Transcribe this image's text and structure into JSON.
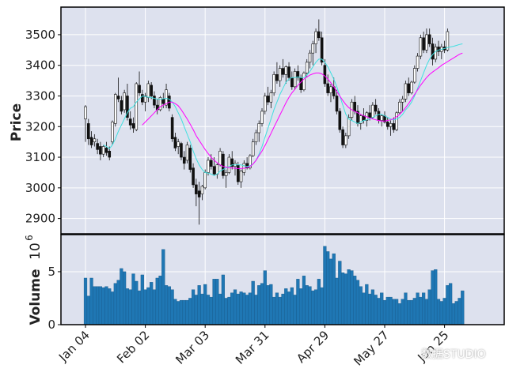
{
  "chart_data": {
    "type": "candlestick",
    "style": {
      "panel_bg": "#dde1ee",
      "grid": "#ffffff",
      "up_color": "#ffffff",
      "down_color": "#111111",
      "ma_short_color": "#40e0e0",
      "ma_long_color": "#ff00ff",
      "volume_color": "#1f77b4"
    },
    "price_panel": {
      "ylabel": "Price",
      "yticks": [
        2900,
        3000,
        3100,
        3200,
        3300,
        3400,
        3500
      ],
      "ylim": [
        2850,
        3590
      ]
    },
    "volume_panel": {
      "ylabel": "Volume",
      "scale_label": "10",
      "scale_exponent": "6",
      "yticks": [
        0,
        5
      ],
      "ylim": [
        0,
        8.5
      ]
    },
    "xticks": [
      {
        "label": "Jan 04",
        "index": 0
      },
      {
        "label": "Feb 02",
        "index": 20
      },
      {
        "label": "Mar 03",
        "index": 40
      },
      {
        "label": "Mar 31",
        "index": 60
      },
      {
        "label": "Apr 29",
        "index": 80
      },
      {
        "label": "May 27",
        "index": 100
      },
      {
        "label": "Jun 25",
        "index": 120
      }
    ],
    "ohlc": [
      [
        3225,
        3270,
        3150,
        3265
      ],
      [
        3210,
        3225,
        3140,
        3160
      ],
      [
        3165,
        3185,
        3130,
        3140
      ],
      [
        3150,
        3175,
        3135,
        3160
      ],
      [
        3145,
        3160,
        3110,
        3125
      ],
      [
        3135,
        3150,
        3090,
        3110
      ],
      [
        3110,
        3140,
        3100,
        3135
      ],
      [
        3130,
        3150,
        3105,
        3115
      ],
      [
        3120,
        3135,
        3090,
        3100
      ],
      [
        3150,
        3220,
        3140,
        3215
      ],
      [
        3210,
        3310,
        3200,
        3305
      ],
      [
        3300,
        3360,
        3280,
        3290
      ],
      [
        3285,
        3300,
        3240,
        3250
      ],
      [
        3255,
        3320,
        3245,
        3310
      ],
      [
        3300,
        3340,
        3220,
        3230
      ],
      [
        3225,
        3250,
        3190,
        3205
      ],
      [
        3210,
        3230,
        3180,
        3195
      ],
      [
        3190,
        3345,
        3185,
        3340
      ],
      [
        3335,
        3380,
        3300,
        3310
      ],
      [
        3305,
        3320,
        3270,
        3280
      ],
      [
        3280,
        3310,
        3250,
        3300
      ],
      [
        3295,
        3350,
        3280,
        3340
      ],
      [
        3335,
        3345,
        3290,
        3300
      ],
      [
        3300,
        3315,
        3260,
        3270
      ],
      [
        3270,
        3290,
        3240,
        3255
      ],
      [
        3255,
        3300,
        3250,
        3295
      ],
      [
        3290,
        3310,
        3260,
        3275
      ],
      [
        3270,
        3340,
        3260,
        3320
      ],
      [
        3300,
        3310,
        3250,
        3260
      ],
      [
        3230,
        3240,
        3150,
        3160
      ],
      [
        3165,
        3180,
        3120,
        3130
      ],
      [
        3135,
        3160,
        3110,
        3150
      ],
      [
        3145,
        3150,
        3090,
        3100
      ],
      [
        3100,
        3120,
        3060,
        3080
      ],
      [
        3090,
        3150,
        3080,
        3140
      ],
      [
        3130,
        3140,
        3050,
        3060
      ],
      [
        3065,
        3080,
        3000,
        3010
      ],
      [
        3010,
        3030,
        2940,
        2980
      ],
      [
        2990,
        3020,
        2880,
        2970
      ],
      [
        2980,
        3010,
        2960,
        3005
      ],
      [
        3000,
        3060,
        2995,
        3050
      ],
      [
        3050,
        3100,
        3040,
        3090
      ],
      [
        3090,
        3110,
        3060,
        3070
      ],
      [
        3070,
        3100,
        3040,
        3045
      ],
      [
        3045,
        3080,
        3030,
        3075
      ],
      [
        3075,
        3130,
        3070,
        3120
      ],
      [
        3110,
        3120,
        3030,
        3040
      ],
      [
        3040,
        3060,
        3000,
        3050
      ],
      [
        3050,
        3110,
        3045,
        3100
      ],
      [
        3095,
        3120,
        3060,
        3070
      ],
      [
        3070,
        3090,
        3040,
        3080
      ],
      [
        3075,
        3085,
        3010,
        3020
      ],
      [
        3020,
        3060,
        3000,
        3055
      ],
      [
        3050,
        3090,
        3040,
        3080
      ],
      [
        3080,
        3100,
        3060,
        3065
      ],
      [
        3065,
        3110,
        3060,
        3105
      ],
      [
        3105,
        3160,
        3100,
        3150
      ],
      [
        3150,
        3190,
        3140,
        3180
      ],
      [
        3180,
        3220,
        3150,
        3210
      ],
      [
        3210,
        3260,
        3200,
        3250
      ],
      [
        3250,
        3310,
        3240,
        3300
      ],
      [
        3300,
        3330,
        3270,
        3280
      ],
      [
        3280,
        3320,
        3260,
        3310
      ],
      [
        3310,
        3380,
        3300,
        3370
      ],
      [
        3370,
        3410,
        3340,
        3350
      ],
      [
        3350,
        3400,
        3330,
        3390
      ],
      [
        3390,
        3420,
        3360,
        3370
      ],
      [
        3370,
        3400,
        3340,
        3395
      ],
      [
        3395,
        3410,
        3350,
        3360
      ],
      [
        3360,
        3380,
        3320,
        3330
      ],
      [
        3330,
        3390,
        3320,
        3380
      ],
      [
        3380,
        3400,
        3350,
        3360
      ],
      [
        3360,
        3370,
        3310,
        3320
      ],
      [
        3320,
        3380,
        3315,
        3375
      ],
      [
        3375,
        3420,
        3360,
        3410
      ],
      [
        3410,
        3450,
        3390,
        3440
      ],
      [
        3440,
        3480,
        3400,
        3470
      ],
      [
        3470,
        3520,
        3440,
        3510
      ],
      [
        3510,
        3550,
        3480,
        3490
      ],
      [
        3490,
        3510,
        3400,
        3410
      ],
      [
        3400,
        3420,
        3330,
        3340
      ],
      [
        3340,
        3370,
        3300,
        3310
      ],
      [
        3310,
        3340,
        3280,
        3330
      ],
      [
        3330,
        3360,
        3290,
        3300
      ],
      [
        3300,
        3320,
        3240,
        3250
      ],
      [
        3250,
        3260,
        3180,
        3190
      ],
      [
        3190,
        3200,
        3130,
        3140
      ],
      [
        3140,
        3180,
        3130,
        3170
      ],
      [
        3170,
        3240,
        3160,
        3230
      ],
      [
        3230,
        3290,
        3220,
        3280
      ],
      [
        3280,
        3300,
        3240,
        3250
      ],
      [
        3250,
        3270,
        3200,
        3210
      ],
      [
        3210,
        3240,
        3190,
        3235
      ],
      [
        3235,
        3260,
        3210,
        3220
      ],
      [
        3220,
        3250,
        3200,
        3245
      ],
      [
        3245,
        3270,
        3220,
        3230
      ],
      [
        3230,
        3280,
        3225,
        3270
      ],
      [
        3270,
        3290,
        3240,
        3250
      ],
      [
        3250,
        3260,
        3210,
        3220
      ],
      [
        3220,
        3240,
        3200,
        3235
      ],
      [
        3235,
        3250,
        3210,
        3215
      ],
      [
        3215,
        3230,
        3190,
        3200
      ],
      [
        3200,
        3220,
        3170,
        3210
      ],
      [
        3210,
        3230,
        3180,
        3190
      ],
      [
        3190,
        3250,
        3185,
        3245
      ],
      [
        3245,
        3290,
        3240,
        3280
      ],
      [
        3280,
        3300,
        3250,
        3290
      ],
      [
        3290,
        3350,
        3280,
        3340
      ],
      [
        3340,
        3360,
        3300,
        3310
      ],
      [
        3310,
        3350,
        3305,
        3345
      ],
      [
        3345,
        3400,
        3340,
        3390
      ],
      [
        3390,
        3440,
        3380,
        3430
      ],
      [
        3430,
        3500,
        3420,
        3490
      ],
      [
        3490,
        3510,
        3440,
        3450
      ],
      [
        3450,
        3520,
        3440,
        3500
      ],
      [
        3500,
        3520,
        3460,
        3470
      ],
      [
        3470,
        3490,
        3400,
        3420
      ],
      [
        3420,
        3470,
        3410,
        3460
      ],
      [
        3460,
        3480,
        3430,
        3445
      ],
      [
        3445,
        3470,
        3420,
        3460
      ],
      [
        3460,
        3480,
        3440,
        3450
      ],
      [
        3450,
        3520,
        3445,
        3510
      ]
    ],
    "volume": [
      4.4,
      2.7,
      4.4,
      3.6,
      3.6,
      3.6,
      3.5,
      3.6,
      3.4,
      3.1,
      3.9,
      4.2,
      5.3,
      5.0,
      3.4,
      3.3,
      4.8,
      4.1,
      3.2,
      4.7,
      3.3,
      3.5,
      4.0,
      3.3,
      4.4,
      4.6,
      7.1,
      3.7,
      3.6,
      3.3,
      2.4,
      2.2,
      2.3,
      2.3,
      2.3,
      2.5,
      3.3,
      2.8,
      3.7,
      2.9,
      3.8,
      2.8,
      2.6,
      4.3,
      4.3,
      2.9,
      4.7,
      2.5,
      2.6,
      3.0,
      3.3,
      2.9,
      3.1,
      3.0,
      2.8,
      3.0,
      4.1,
      2.8,
      3.7,
      3.9,
      5.1,
      3.7,
      3.8,
      2.6,
      3.0,
      2.6,
      2.9,
      3.4,
      3.1,
      3.5,
      2.8,
      4.3,
      3.4,
      4.6,
      3.7,
      3.6,
      3.2,
      3.3,
      4.3,
      3.5,
      7.4,
      6.9,
      6.2,
      6.7,
      4.4,
      6.0,
      4.9,
      4.8,
      5.2,
      5.1,
      4.6,
      4.2,
      3.6,
      3.0,
      3.8,
      2.9,
      3.3,
      2.8,
      2.5,
      3.0,
      2.3,
      2.6,
      2.6,
      2.4,
      2.4,
      2.0,
      2.4,
      3.0,
      2.3,
      2.3,
      2.5,
      3.0,
      2.6,
      3.0,
      2.4,
      3.3,
      5.1,
      5.2,
      2.4,
      2.2,
      2.5,
      3.7,
      3.9,
      2.0,
      2.2,
      2.5,
      3.2
    ],
    "ma_short": [
      null,
      null,
      null,
      null,
      null,
      null,
      3140,
      3135,
      3128,
      3140,
      3160,
      3185,
      3205,
      3225,
      3245,
      3260,
      3265,
      3280,
      3290,
      3300,
      3298,
      3296,
      3295,
      3292,
      3290,
      3289,
      3291,
      3292,
      3290,
      3280,
      3265,
      3245,
      3225,
      3200,
      3175,
      3150,
      3120,
      3095,
      3075,
      3060,
      3050,
      3048,
      3045,
      3040,
      3045,
      3055,
      3060,
      3065,
      3070,
      3075,
      3075,
      3075,
      3075,
      3072,
      3070,
      3072,
      3078,
      3090,
      3110,
      3135,
      3165,
      3195,
      3225,
      3255,
      3280,
      3305,
      3325,
      3345,
      3355,
      3360,
      3360,
      3362,
      3360,
      3360,
      3368,
      3380,
      3395,
      3410,
      3420,
      3420,
      3410,
      3395,
      3375,
      3355,
      3330,
      3300,
      3270,
      3240,
      3225,
      3220,
      3215,
      3210,
      3215,
      3220,
      3222,
      3225,
      3230,
      3235,
      3240,
      3240,
      3235,
      3230,
      3225,
      3222,
      3225,
      3230,
      3240,
      3255,
      3265,
      3280,
      3300,
      3325,
      3350,
      3375,
      3400,
      3420,
      3435,
      3445,
      3450,
      3452,
      3455,
      3458,
      3460,
      3462,
      3465,
      3468,
      3470
    ],
    "ma_long": [
      null,
      null,
      null,
      null,
      null,
      null,
      null,
      null,
      null,
      null,
      null,
      null,
      null,
      null,
      null,
      null,
      null,
      null,
      null,
      3205,
      3215,
      3225,
      3235,
      3245,
      3255,
      3265,
      3270,
      3275,
      3280,
      3280,
      3275,
      3268,
      3255,
      3240,
      3225,
      3208,
      3190,
      3170,
      3155,
      3140,
      3125,
      3112,
      3100,
      3090,
      3082,
      3075,
      3070,
      3068,
      3066,
      3065,
      3064,
      3063,
      3063,
      3064,
      3066,
      3070,
      3078,
      3090,
      3105,
      3120,
      3138,
      3158,
      3178,
      3198,
      3218,
      3238,
      3258,
      3278,
      3295,
      3310,
      3322,
      3335,
      3345,
      3355,
      3362,
      3368,
      3372,
      3375,
      3375,
      3372,
      3365,
      3355,
      3343,
      3330,
      3315,
      3300,
      3285,
      3272,
      3262,
      3255,
      3250,
      3245,
      3240,
      3235,
      3232,
      3228,
      3225,
      3222,
      3220,
      3218,
      3218,
      3220,
      3222,
      3226,
      3232,
      3240,
      3250,
      3262,
      3275,
      3290,
      3305,
      3320,
      3335,
      3348,
      3360,
      3370,
      3378,
      3385,
      3392,
      3400,
      3406,
      3412,
      3418,
      3424,
      3430,
      3436,
      3440
    ]
  },
  "watermark": {
    "text": "数据STUDIO"
  }
}
